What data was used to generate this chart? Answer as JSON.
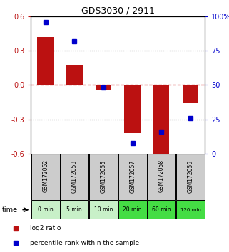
{
  "title": "GDS3030 / 2911",
  "samples": [
    "GSM172052",
    "GSM172053",
    "GSM172055",
    "GSM172057",
    "GSM172058",
    "GSM172059"
  ],
  "time_labels": [
    "0 min",
    "5 min",
    "10 min",
    "20 min",
    "60 min",
    "120 min"
  ],
  "log2_ratio": [
    0.42,
    0.18,
    -0.04,
    -0.42,
    -0.62,
    -0.16
  ],
  "percentile_rank": [
    96,
    82,
    48,
    8,
    16,
    26
  ],
  "bar_color": "#bb1111",
  "dot_color": "#0000cc",
  "ylim_left": [
    -0.6,
    0.6
  ],
  "ylim_right": [
    0,
    100
  ],
  "yticks_left": [
    -0.6,
    -0.3,
    0.0,
    0.3,
    0.6
  ],
  "yticks_right": [
    0,
    25,
    50,
    75,
    100
  ],
  "ytick_labels_right": [
    "0",
    "25",
    "50",
    "75",
    "100%"
  ],
  "hline_color": "#cc0000",
  "grid_color": "#000000",
  "bg_color": "#ffffff",
  "plot_bg": "#ffffff",
  "time_bg_light": "#c8f0c8",
  "time_bg_dark": "#44dd44",
  "sample_bg_color": "#cccccc",
  "legend_items": [
    "log2 ratio",
    "percentile rank within the sample"
  ],
  "bar_width": 0.55
}
